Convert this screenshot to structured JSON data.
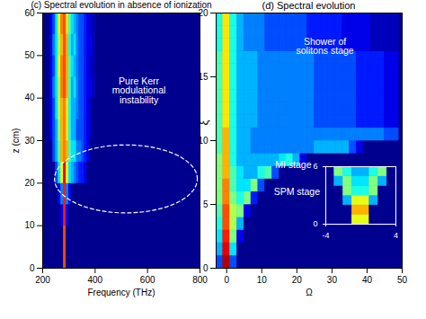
{
  "chart_data": [
    {
      "type": "heatmap",
      "title": "(c) Spectral evolution in absence of ionization",
      "xlabel": "Frequency (THz)",
      "ylabel": "z (cm)",
      "xlim": [
        200,
        800
      ],
      "xticks": [
        200,
        400,
        600,
        800
      ],
      "ylim": [
        0,
        60
      ],
      "yticks": [
        0,
        10,
        20,
        30,
        40,
        50,
        60
      ],
      "annotations": [
        {
          "text": "Pure Kerr\nmodulational\ninstability",
          "x": 567,
          "y": 41.7
        }
      ],
      "region": {
        "x": [
          245,
          790
        ],
        "y": [
          13,
          29
        ]
      },
      "heatmap": {
        "x": [
          235,
          245,
          255,
          265,
          275,
          285,
          295,
          305,
          315,
          325,
          335,
          345,
          355,
          365,
          375,
          385,
          395
        ],
        "y": [
          2.5,
          7.5,
          12.5,
          17.5,
          22.5,
          27.5,
          32.5,
          37.5,
          42.5,
          47.5,
          52.5,
          57.5
        ],
        "x_bin": 10,
        "y_bin": 5,
        "clim": [
          0,
          1
        ],
        "z": [
          [
            0,
            0,
            0,
            0,
            0,
            0.8,
            0,
            0,
            0,
            0,
            0,
            0,
            0,
            0,
            0,
            0,
            0
          ],
          [
            0,
            0,
            0,
            0,
            0,
            0.8,
            0,
            0,
            0,
            0,
            0,
            0,
            0,
            0,
            0,
            0,
            0
          ],
          [
            0,
            0,
            0,
            0,
            0.1,
            0.85,
            0.1,
            0,
            0,
            0,
            0,
            0,
            0,
            0,
            0,
            0,
            0
          ],
          [
            0,
            0,
            0,
            0.1,
            0.25,
            0.85,
            0.25,
            0.1,
            0,
            0,
            0,
            0,
            0,
            0,
            0,
            0,
            0
          ],
          [
            0,
            0,
            0.2,
            0.35,
            0.6,
            0.9,
            0.6,
            0.35,
            0.3,
            0.25,
            0.2,
            0.15,
            0.15,
            0.1,
            0,
            0,
            0
          ],
          [
            0,
            0.2,
            0.3,
            0.45,
            0.7,
            0.75,
            0.7,
            0.45,
            0.35,
            0.35,
            0.25,
            0.25,
            0.2,
            0.15,
            0.1,
            0,
            0
          ],
          [
            0.1,
            0.2,
            0.3,
            0.5,
            0.7,
            0.75,
            0.65,
            0.4,
            0.3,
            0.3,
            0.2,
            0.2,
            0.2,
            0.15,
            0.1,
            0.05,
            0
          ],
          [
            0.1,
            0.2,
            0.35,
            0.55,
            0.7,
            0.75,
            0.65,
            0.4,
            0.3,
            0.3,
            0.25,
            0.2,
            0.2,
            0.15,
            0.1,
            0.05,
            0
          ],
          [
            0.1,
            0.25,
            0.35,
            0.55,
            0.75,
            0.8,
            0.7,
            0.45,
            0.3,
            0.35,
            0.25,
            0.2,
            0.2,
            0.15,
            0.1,
            0.1,
            0.05
          ],
          [
            0.1,
            0.2,
            0.35,
            0.6,
            0.75,
            0.8,
            0.7,
            0.45,
            0.35,
            0.3,
            0.25,
            0.2,
            0.2,
            0.15,
            0.1,
            0.05,
            0.05
          ],
          [
            0.1,
            0.25,
            0.35,
            0.55,
            0.7,
            0.8,
            0.7,
            0.4,
            0.3,
            0.35,
            0.25,
            0.2,
            0.2,
            0.15,
            0.1,
            0.1,
            0.05
          ],
          [
            0.1,
            0.2,
            0.35,
            0.6,
            0.75,
            0.8,
            0.65,
            0.45,
            0.35,
            0.3,
            0.25,
            0.2,
            0.2,
            0.15,
            0.1,
            0.05,
            0.05
          ]
        ]
      }
    },
    {
      "type": "heatmap",
      "title": "(d) Spectral evolution",
      "xlabel": "Ω",
      "ylabel": "ξ",
      "xlim": [
        -3,
        50
      ],
      "xticks": [
        0,
        10,
        20,
        30,
        40,
        50
      ],
      "ylim": [
        0,
        20
      ],
      "yticks": [
        0,
        5,
        10,
        15,
        20
      ],
      "annotations": [
        {
          "text": "Shower of\nsolitons stage",
          "x": 28,
          "y": 17.4
        },
        {
          "text": "MI stage",
          "x": 19,
          "y": 8.1
        },
        {
          "text": "SPM stage",
          "x": 20,
          "y": 6
        }
      ],
      "heatmap": {
        "x": [
          -2,
          0,
          2,
          4,
          6,
          8,
          10,
          12,
          14,
          16,
          18,
          20,
          22,
          24,
          26,
          28,
          30,
          32,
          34,
          36,
          38,
          40,
          42,
          44,
          46,
          48
        ],
        "y": [
          0.5,
          1.5,
          2.5,
          3.5,
          4.5,
          5.5,
          6.5,
          7.5,
          8.5,
          9.5,
          10.5,
          11.5,
          12.5,
          13.5,
          14.5,
          15.5,
          16.5,
          17.5,
          18.5,
          19.5
        ],
        "x_bin": 2,
        "y_bin": 1,
        "clim": [
          0,
          1
        ],
        "z": [
          [
            0.2,
            0.95,
            0.2,
            0,
            0,
            0,
            0,
            0,
            0,
            0,
            0,
            0,
            0,
            0,
            0,
            0,
            0,
            0,
            0,
            0,
            0,
            0,
            0,
            0,
            0,
            0
          ],
          [
            0.3,
            0.9,
            0.35,
            0,
            0,
            0,
            0,
            0,
            0,
            0,
            0,
            0,
            0,
            0,
            0,
            0,
            0,
            0,
            0,
            0,
            0,
            0,
            0,
            0,
            0,
            0
          ],
          [
            0.35,
            0.85,
            0.5,
            0.1,
            0,
            0,
            0,
            0,
            0,
            0,
            0,
            0,
            0,
            0,
            0,
            0,
            0,
            0,
            0,
            0,
            0,
            0,
            0,
            0,
            0,
            0
          ],
          [
            0.4,
            0.8,
            0.55,
            0.3,
            0,
            0,
            0,
            0,
            0,
            0,
            0,
            0,
            0,
            0,
            0,
            0,
            0,
            0,
            0,
            0,
            0,
            0,
            0,
            0,
            0,
            0
          ],
          [
            0.45,
            0.8,
            0.55,
            0.5,
            0.1,
            0,
            0,
            0,
            0,
            0,
            0,
            0,
            0,
            0,
            0,
            0,
            0,
            0,
            0,
            0,
            0,
            0,
            0,
            0,
            0,
            0
          ],
          [
            0.5,
            0.75,
            0.5,
            0.4,
            0.5,
            0.15,
            0,
            0,
            0,
            0,
            0,
            0,
            0,
            0,
            0,
            0,
            0,
            0,
            0,
            0,
            0,
            0,
            0,
            0,
            0,
            0
          ],
          [
            0.5,
            0.75,
            0.45,
            0.35,
            0.35,
            0.5,
            0.2,
            0,
            0,
            0,
            0,
            0,
            0,
            0,
            0,
            0,
            0,
            0,
            0,
            0,
            0,
            0,
            0,
            0,
            0,
            0
          ],
          [
            0.5,
            0.7,
            0.45,
            0.35,
            0.3,
            0.3,
            0.4,
            0.45,
            0.2,
            0,
            0,
            0,
            0,
            0,
            0,
            0,
            0,
            0,
            0,
            0,
            0,
            0,
            0,
            0,
            0,
            0
          ],
          [
            0.5,
            0.7,
            0.4,
            0.3,
            0.3,
            0.3,
            0.3,
            0.3,
            0.3,
            0.35,
            0.4,
            0.3,
            0.1,
            0,
            0,
            0,
            0,
            0,
            0,
            0,
            0,
            0,
            0,
            0,
            0,
            0
          ],
          [
            0.45,
            0.7,
            0.4,
            0.3,
            0.3,
            0.25,
            0.25,
            0.25,
            0.25,
            0.25,
            0.25,
            0.25,
            0.25,
            0.25,
            0.3,
            0.3,
            0.3,
            0.3,
            0.3,
            0.2,
            0.1,
            0,
            0,
            0,
            0,
            0
          ],
          [
            0.45,
            0.7,
            0.4,
            0.3,
            0.3,
            0.25,
            0.25,
            0.25,
            0.25,
            0.25,
            0.25,
            0.25,
            0.25,
            0.25,
            0.25,
            0.25,
            0.25,
            0.25,
            0.25,
            0.25,
            0.25,
            0.25,
            0.25,
            0.25,
            0.2,
            0.2
          ],
          [
            0.45,
            0.65,
            0.4,
            0.3,
            0.3,
            0.3,
            0.25,
            0.25,
            0.25,
            0.25,
            0.25,
            0.25,
            0.25,
            0.25,
            0.2,
            0.2,
            0.2,
            0.2,
            0.2,
            0.2,
            0.15,
            0.15,
            0.15,
            0.15,
            0.1,
            0.1
          ],
          [
            0.45,
            0.65,
            0.4,
            0.3,
            0.3,
            0.3,
            0.25,
            0.25,
            0.25,
            0.25,
            0.25,
            0.25,
            0.25,
            0.25,
            0.2,
            0.2,
            0.2,
            0.2,
            0.2,
            0.2,
            0.15,
            0.15,
            0.15,
            0.15,
            0.1,
            0.1
          ],
          [
            0.45,
            0.65,
            0.4,
            0.3,
            0.3,
            0.3,
            0.25,
            0.25,
            0.25,
            0.25,
            0.25,
            0.25,
            0.25,
            0.25,
            0.2,
            0.2,
            0.2,
            0.2,
            0.2,
            0.2,
            0.15,
            0.15,
            0.15,
            0.15,
            0.1,
            0.1
          ],
          [
            0.45,
            0.65,
            0.4,
            0.3,
            0.3,
            0.3,
            0.25,
            0.25,
            0.25,
            0.25,
            0.25,
            0.25,
            0.25,
            0.25,
            0.2,
            0.2,
            0.2,
            0.2,
            0.2,
            0.2,
            0.15,
            0.15,
            0.15,
            0.15,
            0.1,
            0.1
          ],
          [
            0.45,
            0.65,
            0.4,
            0.3,
            0.3,
            0.3,
            0.25,
            0.25,
            0.25,
            0.25,
            0.25,
            0.25,
            0.25,
            0.25,
            0.2,
            0.2,
            0.2,
            0.2,
            0.2,
            0.2,
            0.15,
            0.15,
            0.15,
            0.15,
            0.1,
            0.1
          ],
          [
            0.45,
            0.65,
            0.4,
            0.3,
            0.3,
            0.3,
            0.25,
            0.25,
            0.25,
            0.25,
            0.25,
            0.25,
            0.25,
            0.25,
            0.2,
            0.2,
            0.2,
            0.2,
            0.2,
            0.2,
            0.15,
            0.15,
            0.15,
            0.15,
            0.1,
            0.1
          ],
          [
            0.4,
            0.65,
            0.4,
            0.3,
            0.25,
            0.25,
            0.25,
            0.2,
            0.2,
            0.2,
            0.2,
            0.2,
            0.2,
            0.15,
            0.15,
            0.15,
            0.15,
            0.15,
            0.1,
            0.1,
            0.1,
            0.1,
            0.05,
            0.05,
            0.05,
            0.05
          ],
          [
            0.4,
            0.65,
            0.4,
            0.3,
            0.25,
            0.25,
            0.25,
            0.2,
            0.2,
            0.2,
            0.2,
            0.2,
            0.2,
            0.15,
            0.15,
            0.15,
            0.15,
            0.15,
            0.1,
            0.1,
            0.1,
            0.1,
            0.05,
            0.05,
            0.05,
            0.05
          ],
          [
            0.4,
            0.65,
            0.4,
            0.3,
            0.25,
            0.25,
            0.25,
            0.2,
            0.2,
            0.2,
            0.2,
            0.2,
            0.2,
            0.15,
            0.15,
            0.15,
            0.15,
            0.15,
            0.1,
            0.1,
            0.1,
            0.1,
            0.05,
            0.05,
            0.05,
            0.05
          ]
        ]
      },
      "inset": {
        "xlim": [
          -4,
          4
        ],
        "xticks": [
          {
            "value": -4,
            "label": "-4"
          },
          4
        ],
        "ylim": [
          0,
          6
        ],
        "yticks": [
          0,
          6
        ],
        "heatmap": {
          "x": [
            -3.5,
            -2.5,
            -1.5,
            -0.5,
            0.5,
            1.5,
            2.5,
            3.5
          ],
          "y": [
            0.5,
            1.5,
            2.5,
            3.5,
            4.5,
            5.5
          ],
          "x_bin": 1,
          "y_bin": 1,
          "clim": [
            0,
            1
          ],
          "z": [
            [
              0,
              0,
              0,
              0.6,
              0.6,
              0,
              0,
              0
            ],
            [
              0,
              0,
              0,
              0.7,
              0.7,
              0,
              0,
              0
            ],
            [
              0,
              0,
              0.3,
              0.6,
              0.6,
              0.3,
              0,
              0
            ],
            [
              0,
              0,
              0.5,
              0.4,
              0.4,
              0.5,
              0,
              0
            ],
            [
              0,
              0.3,
              0.5,
              0.35,
              0.35,
              0.5,
              0.3,
              0
            ],
            [
              0,
              0.5,
              0.4,
              0.3,
              0.3,
              0.4,
              0.5,
              0
            ]
          ]
        }
      }
    }
  ]
}
